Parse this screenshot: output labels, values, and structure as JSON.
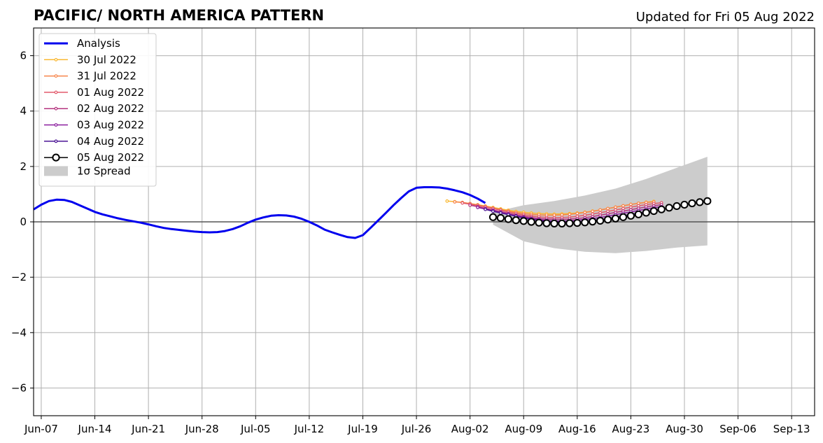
{
  "chart_data": {
    "type": "line",
    "title": "PACIFIC/ NORTH AMERICA PATTERN",
    "subtitle": "Updated for Fri 05 Aug 2022",
    "xlabel": "",
    "ylabel": "",
    "xlim": [
      "2022-06-06",
      "2022-09-16"
    ],
    "ylim": [
      -7,
      7
    ],
    "x_ticks": [
      {
        "date": "2022-06-07",
        "label": "Jun-07"
      },
      {
        "date": "2022-06-14",
        "label": "Jun-14"
      },
      {
        "date": "2022-06-21",
        "label": "Jun-21"
      },
      {
        "date": "2022-06-28",
        "label": "Jun-28"
      },
      {
        "date": "2022-07-05",
        "label": "Jul-05"
      },
      {
        "date": "2022-07-12",
        "label": "Jul-12"
      },
      {
        "date": "2022-07-19",
        "label": "Jul-19"
      },
      {
        "date": "2022-07-26",
        "label": "Jul-26"
      },
      {
        "date": "2022-08-02",
        "label": "Aug-02"
      },
      {
        "date": "2022-08-09",
        "label": "Aug-09"
      },
      {
        "date": "2022-08-16",
        "label": "Aug-16"
      },
      {
        "date": "2022-08-23",
        "label": "Aug-23"
      },
      {
        "date": "2022-08-30",
        "label": "Aug-30"
      },
      {
        "date": "2022-09-06",
        "label": "Sep-06"
      },
      {
        "date": "2022-09-13",
        "label": "Sep-13"
      }
    ],
    "y_ticks": [
      {
        "value": 6,
        "label": "6"
      },
      {
        "value": 4,
        "label": "4"
      },
      {
        "value": 2,
        "label": "2"
      },
      {
        "value": 0,
        "label": "0"
      },
      {
        "value": -2,
        "label": "−2"
      },
      {
        "value": -4,
        "label": "−4"
      },
      {
        "value": -6,
        "label": "−6"
      }
    ],
    "grid": true,
    "legend_position": "top-left",
    "zero_line": 0,
    "analysis": {
      "name": "Analysis",
      "color": "#0000ee",
      "x": [
        "2022-06-06",
        "2022-06-07",
        "2022-06-08",
        "2022-06-09",
        "2022-06-10",
        "2022-06-11",
        "2022-06-12",
        "2022-06-13",
        "2022-06-14",
        "2022-06-15",
        "2022-06-16",
        "2022-06-17",
        "2022-06-18",
        "2022-06-19",
        "2022-06-20",
        "2022-06-21",
        "2022-06-22",
        "2022-06-23",
        "2022-06-24",
        "2022-06-25",
        "2022-06-26",
        "2022-06-27",
        "2022-06-28",
        "2022-06-29",
        "2022-06-30",
        "2022-07-01",
        "2022-07-02",
        "2022-07-03",
        "2022-07-04",
        "2022-07-05",
        "2022-07-06",
        "2022-07-07",
        "2022-07-08",
        "2022-07-09",
        "2022-07-10",
        "2022-07-11",
        "2022-07-12",
        "2022-07-13",
        "2022-07-14",
        "2022-07-15",
        "2022-07-16",
        "2022-07-17",
        "2022-07-18",
        "2022-07-19",
        "2022-07-20",
        "2022-07-21",
        "2022-07-22",
        "2022-07-23",
        "2022-07-24",
        "2022-07-25",
        "2022-07-26",
        "2022-07-27",
        "2022-07-28",
        "2022-07-29",
        "2022-07-30",
        "2022-07-31",
        "2022-08-01",
        "2022-08-02",
        "2022-08-03",
        "2022-08-04"
      ],
      "y": [
        0.45,
        0.62,
        0.75,
        0.8,
        0.79,
        0.72,
        0.6,
        0.48,
        0.36,
        0.27,
        0.2,
        0.13,
        0.07,
        0.02,
        -0.03,
        -0.09,
        -0.16,
        -0.22,
        -0.26,
        -0.29,
        -0.32,
        -0.35,
        -0.37,
        -0.38,
        -0.37,
        -0.33,
        -0.26,
        -0.16,
        -0.03,
        0.08,
        0.16,
        0.22,
        0.24,
        0.23,
        0.19,
        0.11,
        0.0,
        -0.13,
        -0.28,
        -0.38,
        -0.47,
        -0.55,
        -0.58,
        -0.48,
        -0.22,
        0.05,
        0.32,
        0.6,
        0.86,
        1.1,
        1.23,
        1.25,
        1.25,
        1.24,
        1.2,
        1.14,
        1.07,
        0.97,
        0.84,
        0.68
      ]
    },
    "forecasts": [
      {
        "name": "30 Jul 2022",
        "color": "#f9b934",
        "start": "2022-07-30",
        "y": [
          0.75,
          0.73,
          0.7,
          0.66,
          0.62,
          0.57,
          0.52,
          0.47,
          0.42,
          0.38,
          0.35,
          0.32,
          0.3,
          0.29,
          0.28,
          0.29,
          0.3,
          0.32,
          0.35,
          0.39,
          0.43,
          0.48,
          0.53,
          0.58,
          0.63,
          0.67,
          0.71,
          0.74
        ]
      },
      {
        "name": "31 Jul 2022",
        "color": "#f7844a",
        "start": "2022-07-31",
        "y": [
          0.72,
          0.7,
          0.66,
          0.61,
          0.56,
          0.5,
          0.44,
          0.39,
          0.34,
          0.3,
          0.27,
          0.25,
          0.24,
          0.24,
          0.25,
          0.27,
          0.3,
          0.34,
          0.38,
          0.43,
          0.48,
          0.53,
          0.58,
          0.63,
          0.67,
          0.7,
          0.72
        ]
      },
      {
        "name": "01 Aug 2022",
        "color": "#e2596b",
        "start": "2022-08-01",
        "y": [
          0.68,
          0.64,
          0.59,
          0.54,
          0.48,
          0.42,
          0.36,
          0.3,
          0.25,
          0.21,
          0.18,
          0.16,
          0.15,
          0.16,
          0.17,
          0.2,
          0.24,
          0.28,
          0.33,
          0.38,
          0.43,
          0.48,
          0.53,
          0.58,
          0.62,
          0.66,
          0.69
        ]
      },
      {
        "name": "02 Aug 2022",
        "color": "#b5347f",
        "start": "2022-08-02",
        "y": [
          0.6,
          0.55,
          0.49,
          0.43,
          0.37,
          0.31,
          0.25,
          0.2,
          0.16,
          0.12,
          0.1,
          0.09,
          0.09,
          0.1,
          0.12,
          0.15,
          0.19,
          0.24,
          0.29,
          0.34,
          0.39,
          0.44,
          0.49,
          0.54,
          0.58,
          0.62
        ]
      },
      {
        "name": "03 Aug 2022",
        "color": "#8b1f9e",
        "start": "2022-08-03",
        "y": [
          0.52,
          0.46,
          0.4,
          0.34,
          0.28,
          0.22,
          0.17,
          0.12,
          0.08,
          0.05,
          0.03,
          0.03,
          0.04,
          0.06,
          0.09,
          0.12,
          0.16,
          0.21,
          0.26,
          0.31,
          0.36,
          0.41,
          0.46,
          0.51,
          0.55
        ]
      },
      {
        "name": "04 Aug 2022",
        "color": "#4b1394",
        "start": "2022-08-04",
        "y": [
          0.45,
          0.38,
          0.32,
          0.26,
          0.2,
          0.14,
          0.09,
          0.05,
          0.02,
          0.0,
          -0.01,
          -0.01,
          0.0,
          0.02,
          0.05,
          0.08,
          0.12,
          0.17,
          0.22,
          0.27,
          0.32,
          0.37,
          0.42,
          0.47
        ]
      },
      {
        "name": "05 Aug 2022",
        "color": "#000000",
        "start": "2022-08-05",
        "y": [
          0.17,
          0.14,
          0.1,
          0.06,
          0.03,
          0.0,
          -0.03,
          -0.05,
          -0.06,
          -0.06,
          -0.05,
          -0.04,
          -0.02,
          0.01,
          0.04,
          0.08,
          0.12,
          0.17,
          0.22,
          0.27,
          0.33,
          0.39,
          0.45,
          0.51,
          0.57,
          0.62,
          0.67,
          0.71,
          0.75
        ]
      }
    ],
    "spread": {
      "name": "1σ Spread",
      "color": "#cccccc",
      "x": [
        "2022-08-05",
        "2022-08-09",
        "2022-08-13",
        "2022-08-17",
        "2022-08-21",
        "2022-08-25",
        "2022-08-29",
        "2022-09-02"
      ],
      "upper": [
        0.35,
        0.6,
        0.75,
        0.95,
        1.2,
        1.55,
        1.95,
        2.35
      ],
      "lower": [
        -0.1,
        -0.7,
        -0.95,
        -1.08,
        -1.13,
        -1.05,
        -0.93,
        -0.85
      ]
    }
  }
}
